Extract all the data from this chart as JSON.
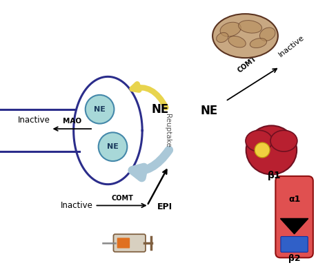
{
  "bg_color": "#ffffff",
  "neuron_color": "#2b2d8b",
  "ne_circle_color": "#a8d8d8",
  "ne_circle_edge": "#4488aa",
  "reuptake_arrow_color": "#aac8d8",
  "yellow_arrow_color": "#e8d44d",
  "labels": {
    "NE": "NE",
    "Reuptake": "Reuptake",
    "MAO": "MAO",
    "Inactive_left": "Inactive",
    "Inactive_right": "Inactive",
    "Inactive_bottom": "Inactive",
    "COMT_top": "COMT",
    "COMT_bottom": "COMT",
    "EPI": "EPI",
    "beta1": "β1",
    "alpha1": "α1",
    "beta2": "β2"
  }
}
